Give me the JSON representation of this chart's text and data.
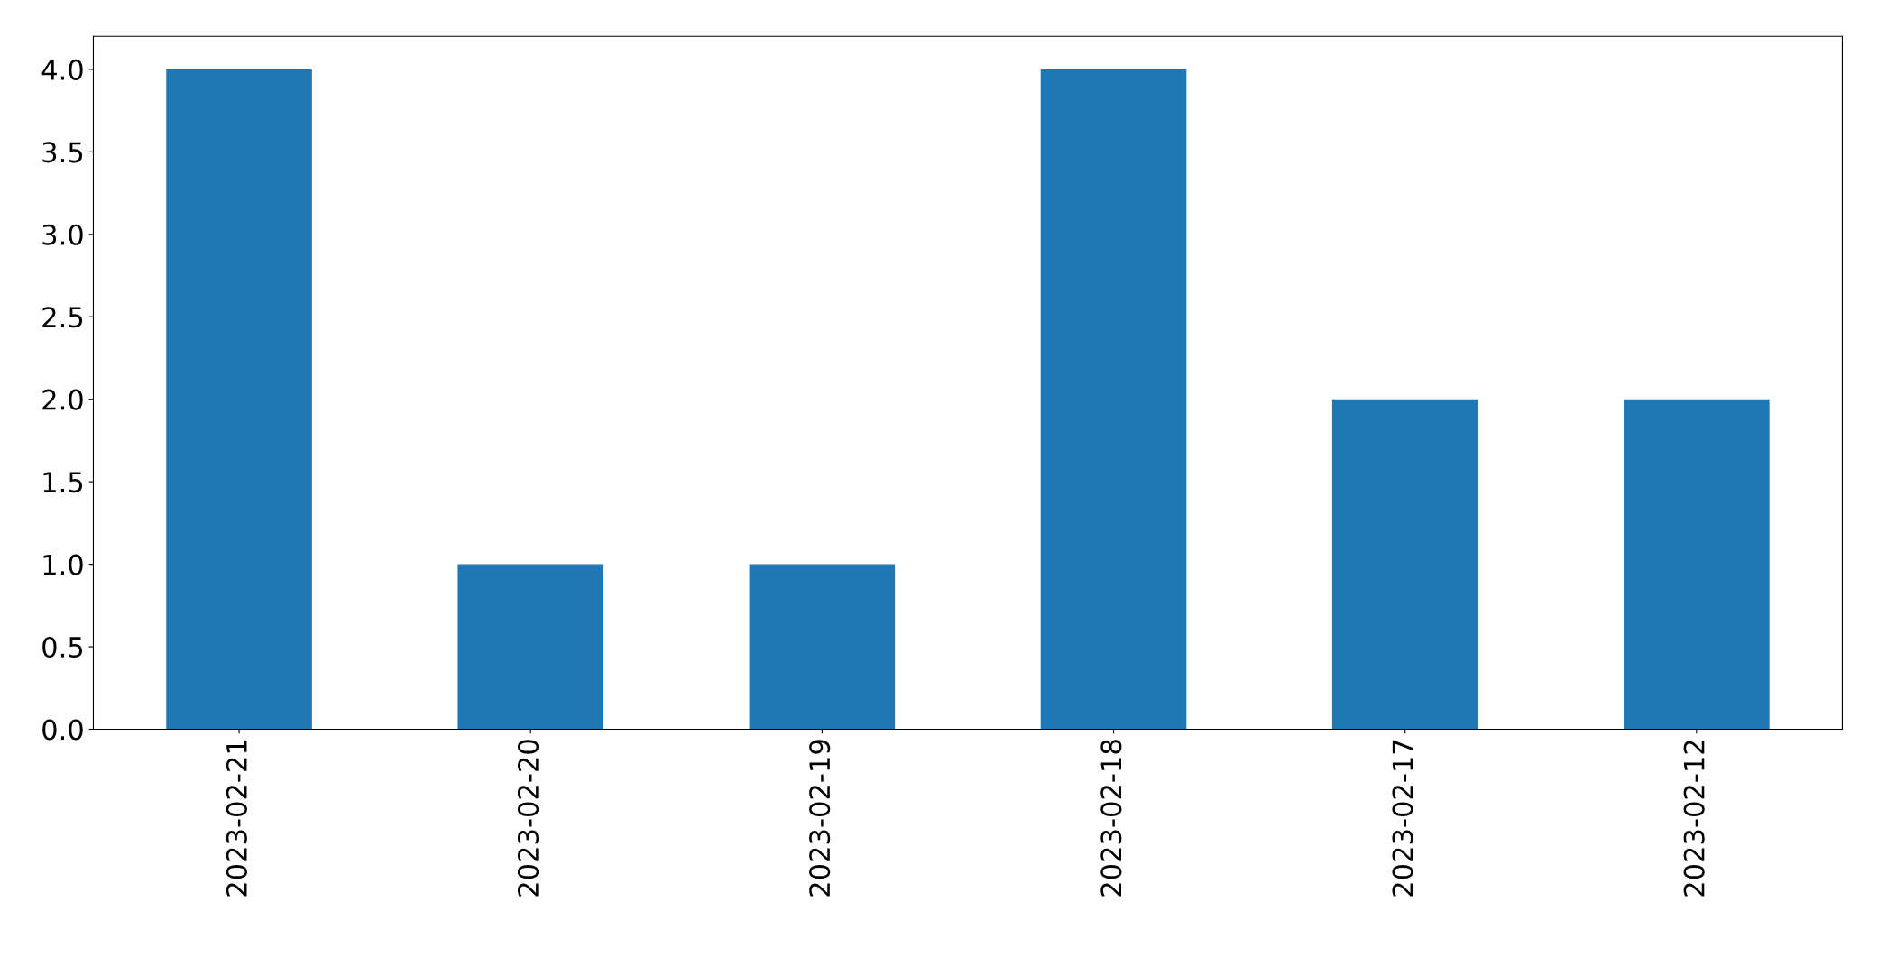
{
  "chart_data": {
    "type": "bar",
    "categories": [
      "2023-02-21",
      "2023-02-20",
      "2023-02-19",
      "2023-02-18",
      "2023-02-17",
      "2023-02-12"
    ],
    "values": [
      4,
      1,
      1,
      4,
      2,
      2
    ],
    "color": "#1f77b4",
    "ylim": [
      0,
      4.2
    ],
    "yticks": [
      {
        "value": 0,
        "label": "0.0"
      },
      {
        "value": 0.5,
        "label": "0.5"
      },
      {
        "value": 1,
        "label": "1.0"
      },
      {
        "value": 1.5,
        "label": "1.5"
      },
      {
        "value": 2,
        "label": "2.0"
      },
      {
        "value": 2.5,
        "label": "2.5"
      },
      {
        "value": 3,
        "label": "3.0"
      },
      {
        "value": 3.5,
        "label": "3.5"
      },
      {
        "value": 4,
        "label": "4.0"
      }
    ],
    "grid": false
  }
}
